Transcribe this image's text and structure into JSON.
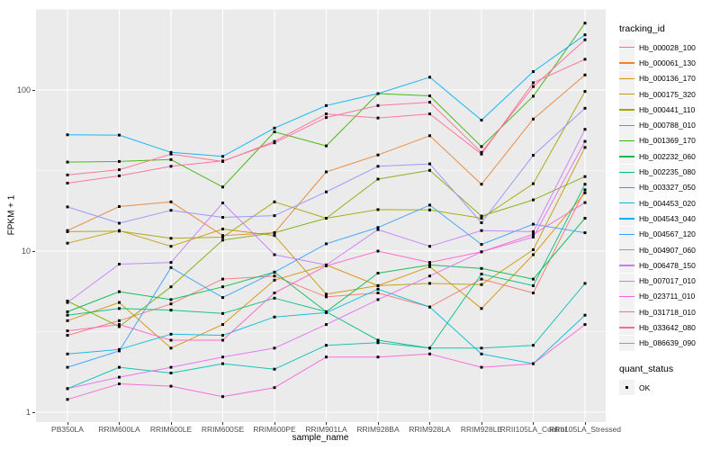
{
  "style": {
    "outer_bg": "#FFFFFF",
    "panel_bg": "#EBEBEB",
    "grid_color": "#FFFFFF",
    "tick_label_color": "#4D4D4D",
    "axis_title_color": "#000000",
    "legend_key_bg": "#F2F2F2",
    "point_color": "#000000"
  },
  "chart_data": {
    "type": "line",
    "title": "",
    "xlabel": "sample_name",
    "ylabel": "FPKM + 1",
    "y_scale": "log10",
    "ylim": [
      1,
      320
    ],
    "y_major_ticks": [
      "1",
      "10",
      "100"
    ],
    "y_minor_ticks": [
      3.162,
      31.62,
      316.2
    ],
    "grid": true,
    "x_categories": [
      "PB350LA",
      "RRIM600LA",
      "RRIM600LE",
      "RRIM600SE",
      "RRIM600PE",
      "RRIM901LA",
      "RRIM928BA",
      "RRIM928LA",
      "RRIM928LE",
      "RRII105LA_Control",
      "RRII105LA_Stressed"
    ],
    "legend": {
      "title": "tracking_id",
      "position": "right"
    },
    "legend2": {
      "title": "quant_status",
      "items": [
        {
          "label": "OK",
          "marker": "black-square"
        }
      ]
    },
    "point_marker": {
      "shape": "square",
      "color": "#000000",
      "size": 3
    },
    "series": [
      {
        "name": "Hb_000028_100",
        "color": "#F8766D",
        "values": [
          3.0,
          3.7,
          4.7,
          6.7,
          7.0,
          5.2,
          5.5,
          4.5,
          6.7,
          5.5,
          24
        ]
      },
      {
        "name": "Hb_000061_130",
        "color": "#EA8331",
        "values": [
          13.4,
          18.9,
          20.2,
          12.5,
          13.0,
          31,
          39.5,
          52,
          26,
          66,
          124
        ]
      },
      {
        "name": "Hb_000136_170",
        "color": "#D89000",
        "values": [
          3.7,
          4.8,
          2.5,
          3.5,
          6.6,
          8.2,
          6.1,
          8.0,
          4.4,
          9.5,
          23
        ]
      },
      {
        "name": "Hb_000175_320",
        "color": "#C09B00",
        "values": [
          11.2,
          13.4,
          10.7,
          13.7,
          12.5,
          5.4,
          6.1,
          6.3,
          6.2,
          10.2,
          44
        ]
      },
      {
        "name": "Hb_000441_110",
        "color": "#A3A500",
        "values": [
          13.2,
          13.3,
          12.0,
          12.2,
          20.2,
          16.0,
          18.1,
          18.0,
          16.0,
          26.2,
          98
        ]
      },
      {
        "name": "Hb_000788_010",
        "color": "#7CAE00",
        "values": [
          4.9,
          3.4,
          6.0,
          11.7,
          13.0,
          16.0,
          28.0,
          31.7,
          16.5,
          20.8,
          29
        ]
      },
      {
        "name": "Hb_001369_170",
        "color": "#39B600",
        "values": [
          35.7,
          36.0,
          37.0,
          25.0,
          55.0,
          45.0,
          95.0,
          92.0,
          44.5,
          91.5,
          260
        ]
      },
      {
        "name": "Hb_002232_060",
        "color": "#00BB4E",
        "values": [
          4.2,
          5.6,
          5.0,
          6.0,
          7.4,
          4.2,
          7.3,
          8.2,
          7.8,
          6.7,
          16
        ]
      },
      {
        "name": "Hb_002235_080",
        "color": "#00BF7D",
        "values": [
          4.0,
          4.4,
          4.3,
          4.1,
          5.1,
          4.2,
          2.8,
          2.5,
          7.2,
          6.1,
          26
        ]
      },
      {
        "name": "Hb_003327_050",
        "color": "#00C0AF",
        "values": [
          1.4,
          1.9,
          1.75,
          2.0,
          1.85,
          2.6,
          2.7,
          2.5,
          2.5,
          2.6,
          6.3
        ]
      },
      {
        "name": "Hb_004453_020",
        "color": "#00BCD8",
        "values": [
          2.3,
          2.45,
          3.05,
          3.0,
          3.9,
          4.15,
          5.8,
          4.5,
          2.3,
          2.0,
          4.0
        ]
      },
      {
        "name": "Hb_004543_040",
        "color": "#00B0F6",
        "values": [
          52.7,
          52.5,
          41.0,
          38.7,
          58.0,
          80.0,
          95.0,
          120.0,
          65.0,
          130,
          220
        ]
      },
      {
        "name": "Hb_004567_120",
        "color": "#35A2FF",
        "values": [
          1.9,
          2.4,
          7.9,
          5.15,
          7.4,
          11.1,
          14.0,
          19.3,
          11.0,
          14.7,
          13.0
        ]
      },
      {
        "name": "Hb_004907_060",
        "color": "#9590FF",
        "values": [
          18.8,
          14.9,
          17.9,
          16.2,
          16.6,
          23.3,
          33.6,
          34.8,
          15.0,
          39.3,
          77
        ]
      },
      {
        "name": "Hb_006478_150",
        "color": "#C77CFF",
        "values": [
          4.8,
          8.3,
          8.5,
          19.9,
          9.5,
          8.2,
          13.6,
          10.7,
          13.4,
          13.2,
          57
        ]
      },
      {
        "name": "Hb_007017_010",
        "color": "#E76BF3",
        "values": [
          1.4,
          1.65,
          1.9,
          2.2,
          2.5,
          3.5,
          5.0,
          7.0,
          9.9,
          12.2,
          48
        ]
      },
      {
        "name": "Hb_023711_010",
        "color": "#FA62DB",
        "values": [
          1.2,
          1.5,
          1.45,
          1.25,
          1.42,
          2.2,
          2.2,
          2.3,
          1.9,
          2.0,
          3.5
        ]
      },
      {
        "name": "Hb_031718_010",
        "color": "#FF61C9",
        "values": [
          3.2,
          3.5,
          2.8,
          2.8,
          5.5,
          8.1,
          10.0,
          8.5,
          9.9,
          12.7,
          20
        ]
      },
      {
        "name": "Hb_033642_080",
        "color": "#FF689E",
        "values": [
          26.4,
          29.3,
          33.6,
          36.3,
          47.0,
          67.5,
          80.0,
          84.0,
          41.0,
          105,
          205
        ]
      },
      {
        "name": "Hb_086639_090",
        "color": "#FF6C91",
        "values": [
          29.7,
          32.0,
          40.0,
          36.0,
          48.0,
          71.0,
          67.0,
          71.0,
          40.0,
          111,
          155
        ]
      }
    ]
  }
}
